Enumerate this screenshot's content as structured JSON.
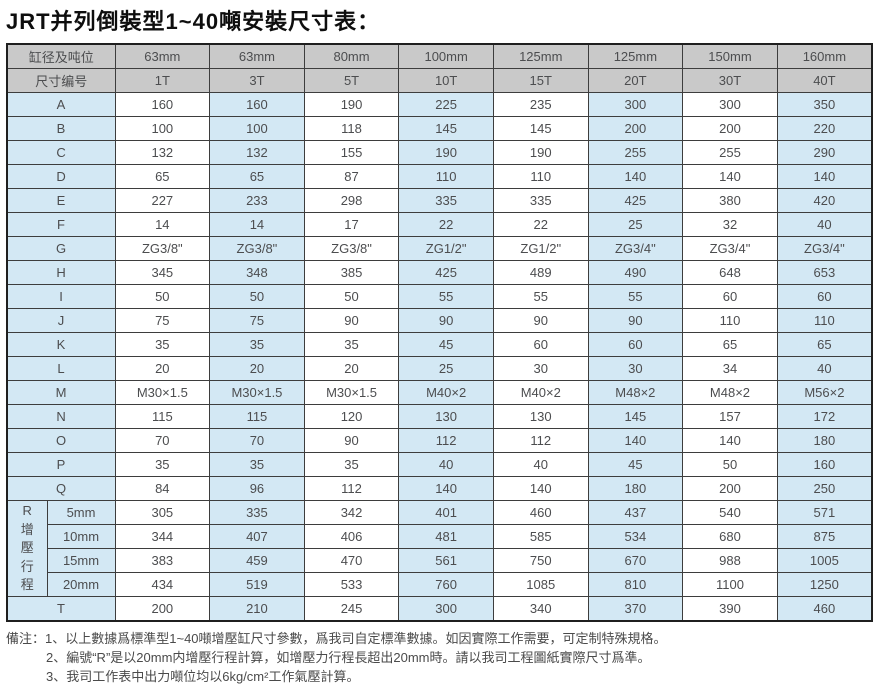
{
  "title": "JRT并列倒裝型1~40噸安裝尺寸表：",
  "table": {
    "header_row1_label": "缸径及吨位",
    "header_row2_label": "尺寸编号",
    "diameters": [
      "63mm",
      "63mm",
      "80mm",
      "100mm",
      "125mm",
      "125mm",
      "150mm",
      "160mm"
    ],
    "tonnages": [
      "1T",
      "3T",
      "5T",
      "10T",
      "15T",
      "20T",
      "30T",
      "40T"
    ],
    "rows": [
      {
        "label": "A",
        "values": [
          "160",
          "160",
          "190",
          "225",
          "235",
          "300",
          "300",
          "350"
        ]
      },
      {
        "label": "B",
        "values": [
          "100",
          "100",
          "118",
          "145",
          "145",
          "200",
          "200",
          "220"
        ]
      },
      {
        "label": "C",
        "values": [
          "132",
          "132",
          "155",
          "190",
          "190",
          "255",
          "255",
          "290"
        ]
      },
      {
        "label": "D",
        "values": [
          "65",
          "65",
          "87",
          "110",
          "110",
          "140",
          "140",
          "140"
        ]
      },
      {
        "label": "E",
        "values": [
          "227",
          "233",
          "298",
          "335",
          "335",
          "425",
          "380",
          "420"
        ]
      },
      {
        "label": "F",
        "values": [
          "14",
          "14",
          "17",
          "22",
          "22",
          "25",
          "32",
          "40"
        ]
      },
      {
        "label": "G",
        "values": [
          "ZG3/8\"",
          "ZG3/8\"",
          "ZG3/8\"",
          "ZG1/2\"",
          "ZG1/2\"",
          "ZG3/4\"",
          "ZG3/4\"",
          "ZG3/4\""
        ]
      },
      {
        "label": "H",
        "values": [
          "345",
          "348",
          "385",
          "425",
          "489",
          "490",
          "648",
          "653"
        ]
      },
      {
        "label": "I",
        "values": [
          "50",
          "50",
          "50",
          "55",
          "55",
          "55",
          "60",
          "60"
        ]
      },
      {
        "label": "J",
        "values": [
          "75",
          "75",
          "90",
          "90",
          "90",
          "90",
          "110",
          "110"
        ]
      },
      {
        "label": "K",
        "values": [
          "35",
          "35",
          "35",
          "45",
          "60",
          "60",
          "65",
          "65"
        ]
      },
      {
        "label": "L",
        "values": [
          "20",
          "20",
          "20",
          "25",
          "30",
          "30",
          "34",
          "40"
        ]
      },
      {
        "label": "M",
        "values": [
          "M30×1.5",
          "M30×1.5",
          "M30×1.5",
          "M40×2",
          "M40×2",
          "M48×2",
          "M48×2",
          "M56×2"
        ]
      },
      {
        "label": "N",
        "values": [
          "115",
          "115",
          "120",
          "130",
          "130",
          "145",
          "157",
          "172"
        ]
      },
      {
        "label": "O",
        "values": [
          "70",
          "70",
          "90",
          "112",
          "112",
          "140",
          "140",
          "180"
        ]
      },
      {
        "label": "P",
        "values": [
          "35",
          "35",
          "35",
          "40",
          "40",
          "45",
          "50",
          "160"
        ]
      },
      {
        "label": "Q",
        "values": [
          "84",
          "96",
          "112",
          "140",
          "140",
          "180",
          "200",
          "250"
        ]
      }
    ],
    "r_section": {
      "letter": "R",
      "caption": "增壓行程",
      "subrows": [
        {
          "label": "5mm",
          "values": [
            "305",
            "335",
            "342",
            "401",
            "460",
            "437",
            "540",
            "571"
          ]
        },
        {
          "label": "10mm",
          "values": [
            "344",
            "407",
            "406",
            "481",
            "585",
            "534",
            "680",
            "875"
          ]
        },
        {
          "label": "15mm",
          "values": [
            "383",
            "459",
            "470",
            "561",
            "750",
            "670",
            "988",
            "1005"
          ]
        },
        {
          "label": "20mm",
          "values": [
            "434",
            "519",
            "533",
            "760",
            "1085",
            "810",
            "1100",
            "1250"
          ]
        }
      ]
    },
    "t_row": {
      "label": "T",
      "values": [
        "200",
        "210",
        "245",
        "300",
        "340",
        "370",
        "390",
        "460"
      ]
    }
  },
  "notes": {
    "prefix": "備注：",
    "items": [
      "1、以上數據爲標準型1~40噸增壓缸尺寸參數，爲我司自定標準數據。如因實際工作需要，可定制特殊規格。",
      "2、編號“R”是以20mm内增壓行程計算，如增壓力行程長超出20mm時。請以我司工程圖紙實際尺寸爲準。",
      "3、我司工作表中出力噸位均以6kg/cm²工作氣壓計算。"
    ]
  },
  "colors": {
    "header_bg": "#c9c9c9",
    "stripe_blue_bg": "#d3e8f4",
    "stripe_white_bg": "#ffffff",
    "border": "#3d3d3d",
    "cell_text": "#4c4d4f",
    "title_text": "#0e0e0e"
  }
}
